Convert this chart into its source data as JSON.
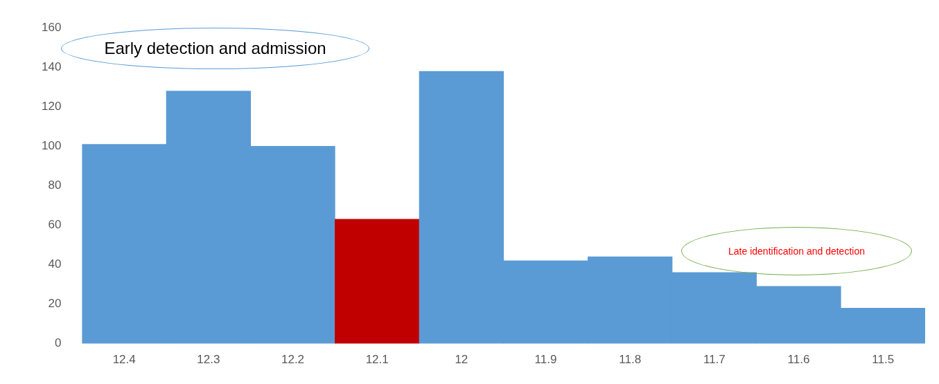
{
  "chart_data": {
    "type": "bar",
    "categories": [
      "12.4",
      "12.3",
      "12.2",
      "12.1",
      "12",
      "11.9",
      "11.8",
      "11.7",
      "11.6",
      "11.5"
    ],
    "values": [
      101,
      128,
      100,
      63,
      138,
      42,
      44,
      36,
      29,
      18
    ],
    "colors": [
      "#5b9bd5",
      "#5b9bd5",
      "#5b9bd5",
      "#c00000",
      "#5b9bd5",
      "#5b9bd5",
      "#5b9bd5",
      "#5b9bd5",
      "#5b9bd5",
      "#5b9bd5"
    ],
    "ylim": [
      0,
      160
    ],
    "yticks": [
      0,
      20,
      40,
      60,
      80,
      100,
      120,
      140,
      160
    ],
    "grid": false,
    "legend": false,
    "annotations": [
      "Early detection and admission",
      "Late identification and detection"
    ]
  }
}
